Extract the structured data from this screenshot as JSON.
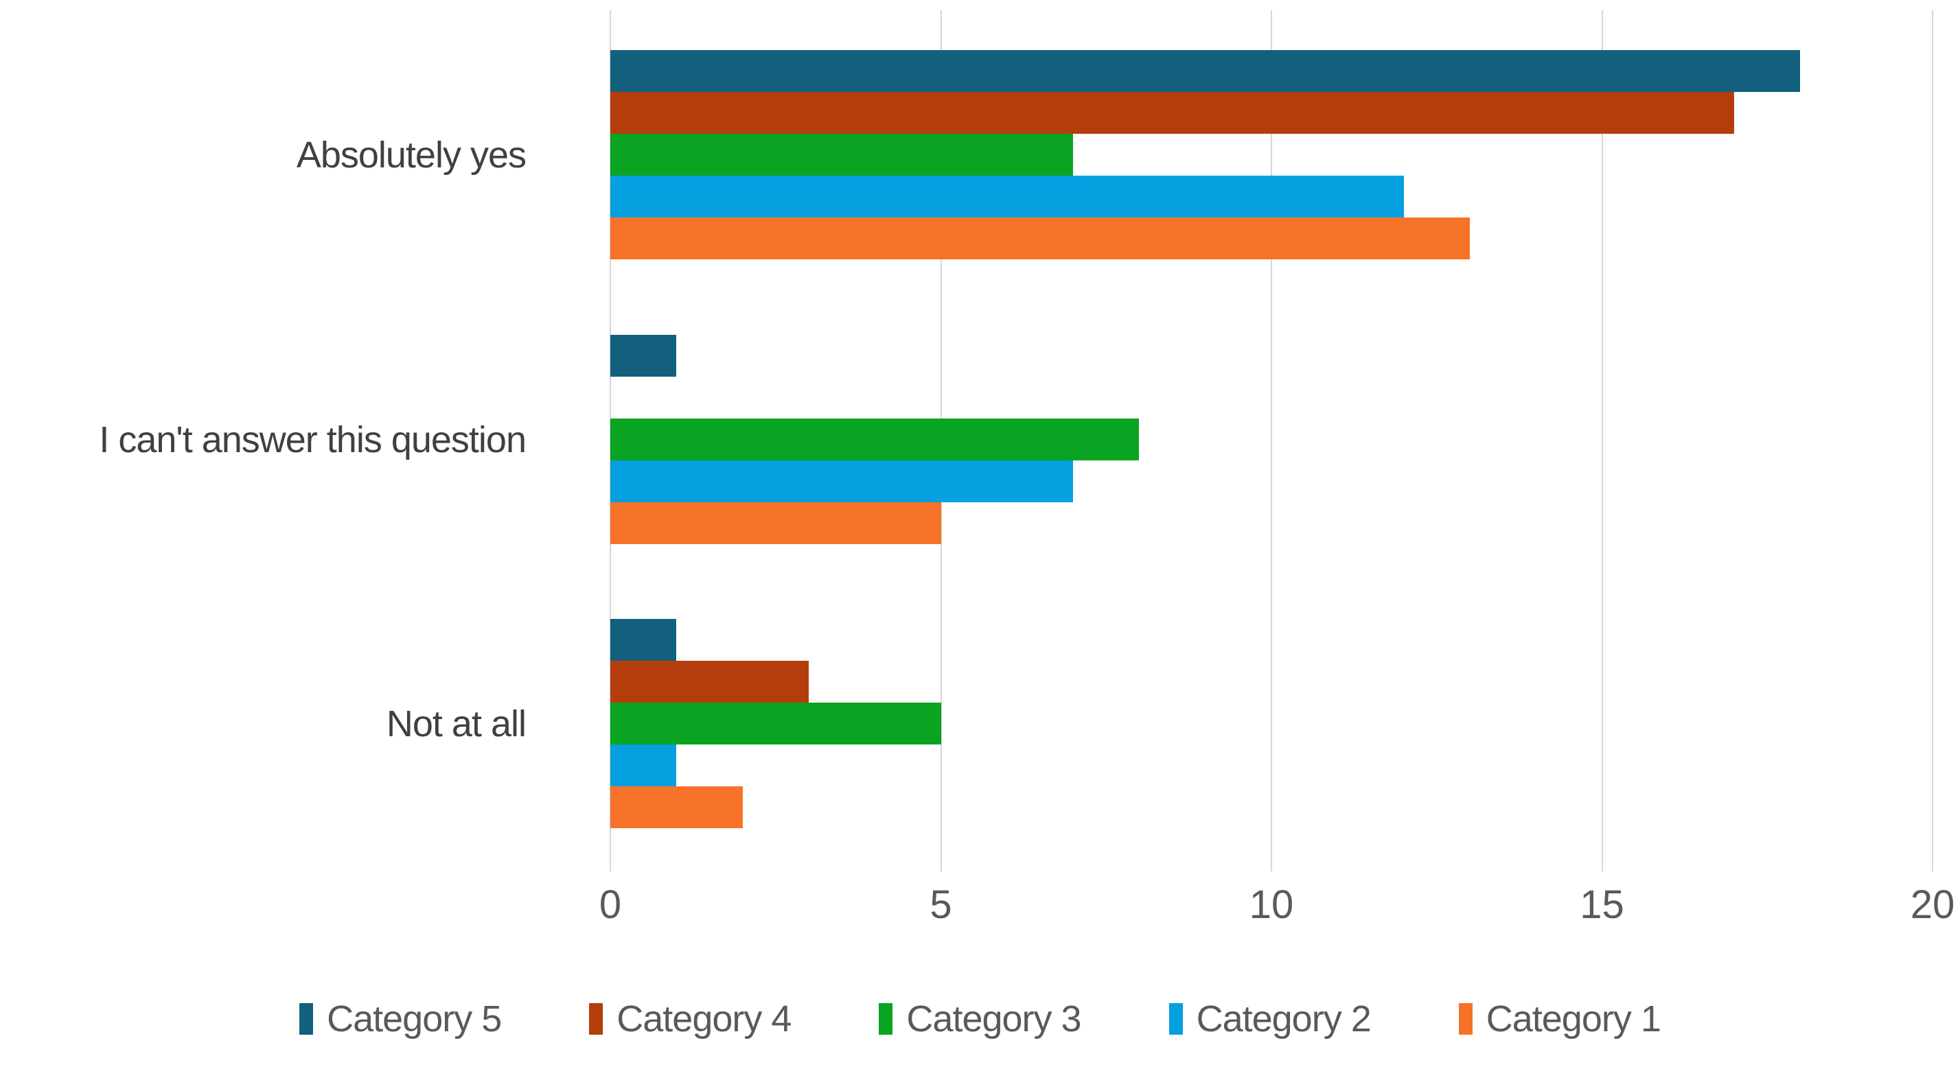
{
  "chart_data": {
    "type": "bar",
    "orientation": "horizontal",
    "title": "",
    "xlabel": "",
    "ylabel": "",
    "categories": [
      "Absolutely yes",
      "I can't answer this question",
      "Not at all"
    ],
    "series": [
      {
        "name": "Category 5",
        "color": "#12607E",
        "values": [
          18,
          1,
          1
        ]
      },
      {
        "name": "Category 4",
        "color": "#B43E0B",
        "values": [
          17,
          0,
          3
        ]
      },
      {
        "name": "Category 3",
        "color": "#09A421",
        "values": [
          7,
          8,
          5
        ]
      },
      {
        "name": "Category 2",
        "color": "#069FDF",
        "values": [
          12,
          7,
          1
        ]
      },
      {
        "name": "Category 1",
        "color": "#F67229",
        "values": [
          13,
          5,
          2
        ]
      }
    ],
    "xlim": [
      0,
      20
    ],
    "x_ticks": [
      "0",
      "5",
      "10",
      "15",
      "20"
    ],
    "grid": true,
    "gridline_color": "#d6d6d6",
    "legend_position": "bottom",
    "legend_order": [
      "Category 5",
      "Category 4",
      "Category 3",
      "Category 2",
      "Category 1"
    ],
    "series_draw_order_top_to_bottom": [
      "Category 5",
      "Category 4",
      "Category 3",
      "Category 2",
      "Category 1"
    ]
  }
}
